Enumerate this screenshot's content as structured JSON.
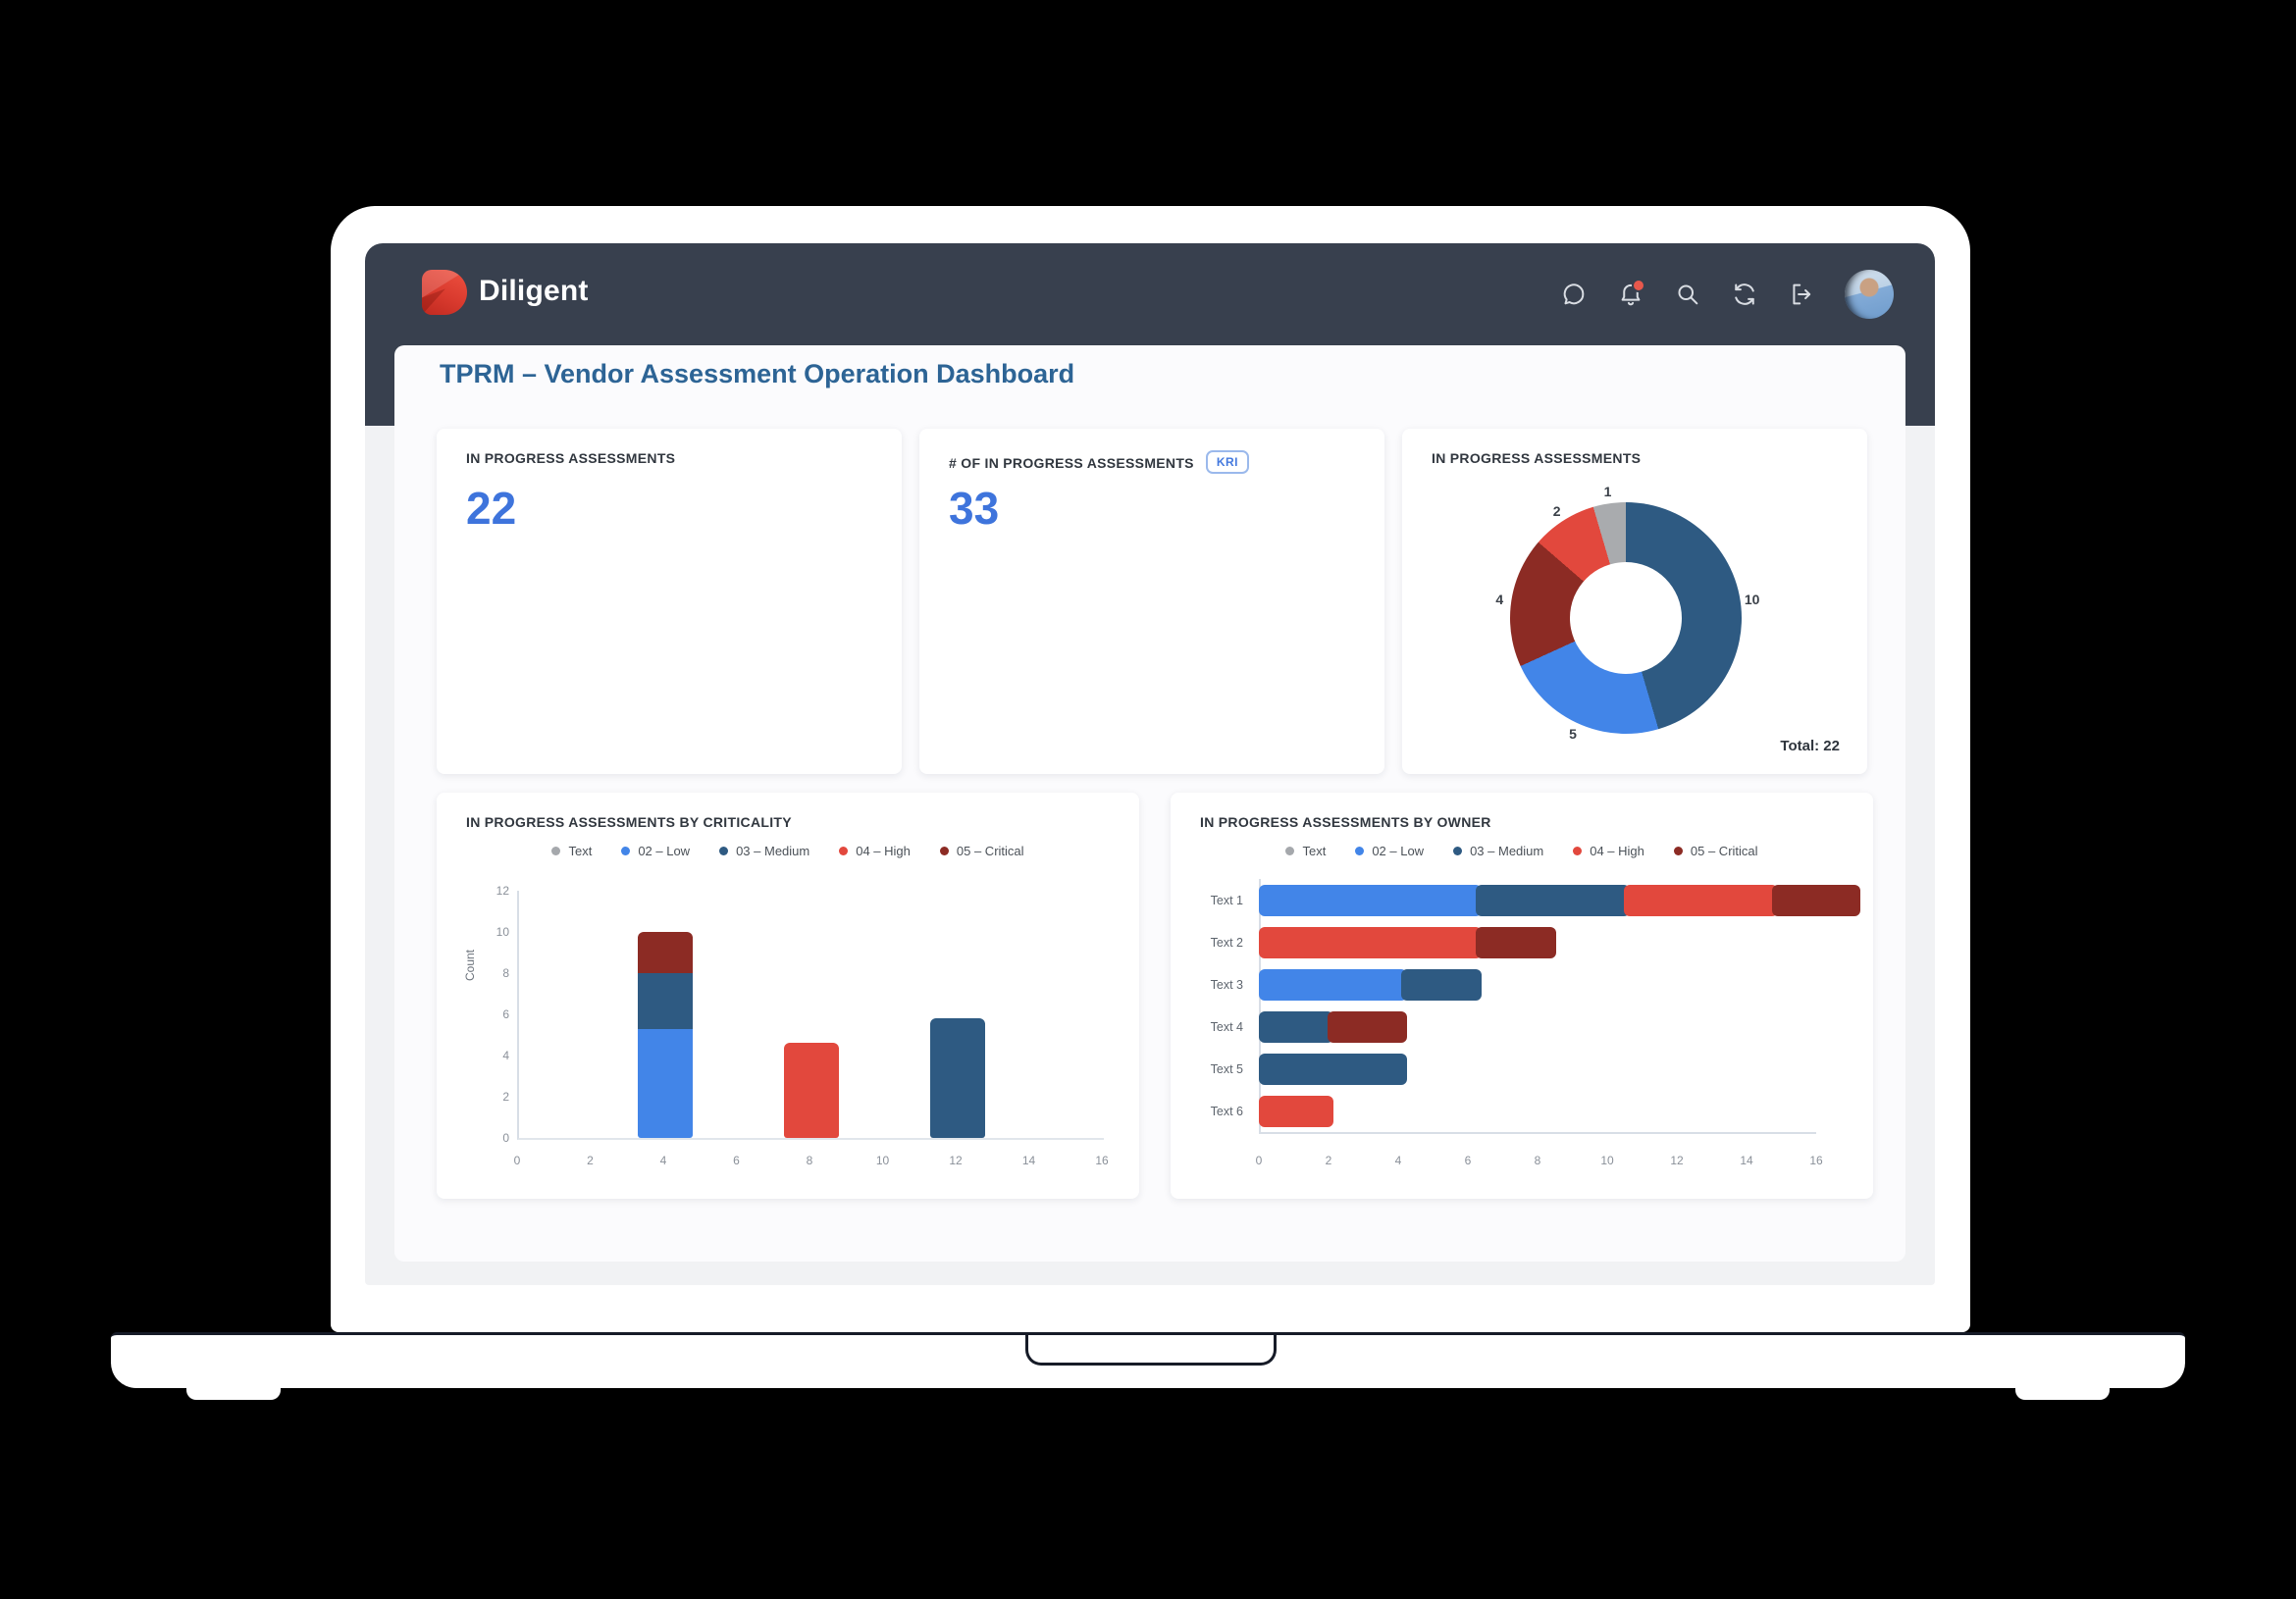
{
  "brand": {
    "name": "Diligent"
  },
  "navbar": {
    "icons": [
      {
        "name": "chat"
      },
      {
        "name": "notifications",
        "badge_dot": true
      },
      {
        "name": "search"
      },
      {
        "name": "sync"
      },
      {
        "name": "logout"
      },
      {
        "name": "avatar"
      }
    ]
  },
  "page_title": "TPRM – Vendor Assessment Operation Dashboard",
  "kpi_cards": [
    {
      "title": "IN PROGRESS ASSESSMENTS",
      "value": "22"
    },
    {
      "title": "# OF IN PROGRESS ASSESSMENTS",
      "badge": "KRI",
      "value": "33"
    }
  ],
  "donut_card": {
    "title": "IN PROGRESS ASSESSMENTS",
    "total_label": "Total: 22"
  },
  "criticality_card": {
    "title": "IN PROGRESS ASSESSMENTS BY CRITICALITY",
    "ylabel": "Count"
  },
  "owner_card": {
    "title": "IN PROGRESS ASSESSMENTS BY OWNER"
  },
  "colors": {
    "navbar": "#38404e",
    "accent_blue": "#3e74dc",
    "title_blue": "#2d6495",
    "brand_red": "#d93a2e"
  },
  "series_colors": {
    "Text": "#a5a8ac",
    "02 – Low": "#4285e8",
    "03 – Medium": "#2e5a82",
    "04 – High": "#e2483d",
    "05 – Critical": "#8c2b24"
  },
  "legend": [
    {
      "label": "Text",
      "color": "#a5a8ac"
    },
    {
      "label": "02 – Low",
      "color": "#4285e8"
    },
    {
      "label": "03 – Medium",
      "color": "#2e5a82"
    },
    {
      "label": "04 – High",
      "color": "#e2483d"
    },
    {
      "label": "05 – Critical",
      "color": "#8c2b24"
    }
  ],
  "chart_data": [
    {
      "type": "pie",
      "donut": true,
      "title": "IN PROGRESS ASSESSMENTS",
      "total": 22,
      "total_label": "Total: 22",
      "start_angle_deg": 0,
      "clockwise": true,
      "slices": [
        {
          "label": "10",
          "value": 10,
          "color": "#2e5a82"
        },
        {
          "label": "5",
          "value": 5,
          "color": "#4285e8"
        },
        {
          "label": "4",
          "value": 4,
          "color": "#8c2b24"
        },
        {
          "label": "2",
          "value": 2,
          "color": "#e2483d"
        },
        {
          "label": "1",
          "value": 1,
          "color": "#a9abae"
        }
      ]
    },
    {
      "type": "bar",
      "orientation": "vertical",
      "stacked": true,
      "title": "IN PROGRESS ASSESSMENTS BY CRITICALITY",
      "xlabel": "",
      "ylabel": "Count",
      "xlim": [
        0,
        16
      ],
      "ylim": [
        0,
        12
      ],
      "xticks": [
        0,
        2,
        4,
        6,
        8,
        10,
        12,
        14,
        16
      ],
      "yticks": [
        0,
        2,
        4,
        6,
        8,
        10,
        12
      ],
      "bar_width_units": 1.5,
      "grid": false,
      "bars": [
        {
          "x": 4,
          "segments": [
            {
              "series": "02 – Low",
              "value": 5.3
            },
            {
              "series": "03 – Medium",
              "value": 2.7
            },
            {
              "series": "05 – Critical",
              "value": 2.0
            }
          ]
        },
        {
          "x": 8,
          "segments": [
            {
              "series": "04 – High",
              "value": 4.6
            }
          ]
        },
        {
          "x": 12,
          "segments": [
            {
              "series": "03 – Medium",
              "value": 5.8
            }
          ]
        }
      ]
    },
    {
      "type": "bar",
      "orientation": "horizontal",
      "stacked": true,
      "title": "IN PROGRESS ASSESSMENTS BY OWNER",
      "xlim": [
        0,
        16
      ],
      "xticks": [
        0,
        2,
        4,
        6,
        8,
        10,
        12,
        14,
        16
      ],
      "categories": [
        "Text 1",
        "Text 2",
        "Text 3",
        "Text 4",
        "Text 5",
        "Text 6"
      ],
      "grid": false,
      "rows": [
        {
          "category": "Text 1",
          "segments": [
            {
              "series": "02 – Low",
              "value": 6
            },
            {
              "series": "03 – Medium",
              "value": 4
            },
            {
              "series": "04 – High",
              "value": 4
            },
            {
              "series": "05 – Critical",
              "value": 2.2
            }
          ]
        },
        {
          "category": "Text 2",
          "segments": [
            {
              "series": "04 – High",
              "value": 6
            },
            {
              "series": "05 – Critical",
              "value": 2
            }
          ]
        },
        {
          "category": "Text 3",
          "segments": [
            {
              "series": "02 – Low",
              "value": 4
            },
            {
              "series": "03 – Medium",
              "value": 2
            }
          ]
        },
        {
          "category": "Text 4",
          "segments": [
            {
              "series": "03 – Medium",
              "value": 2
            },
            {
              "series": "05 – Critical",
              "value": 2
            }
          ]
        },
        {
          "category": "Text 5",
          "segments": [
            {
              "series": "03 – Medium",
              "value": 4
            }
          ]
        },
        {
          "category": "Text 6",
          "segments": [
            {
              "series": "04 – High",
              "value": 2
            }
          ]
        }
      ]
    }
  ]
}
